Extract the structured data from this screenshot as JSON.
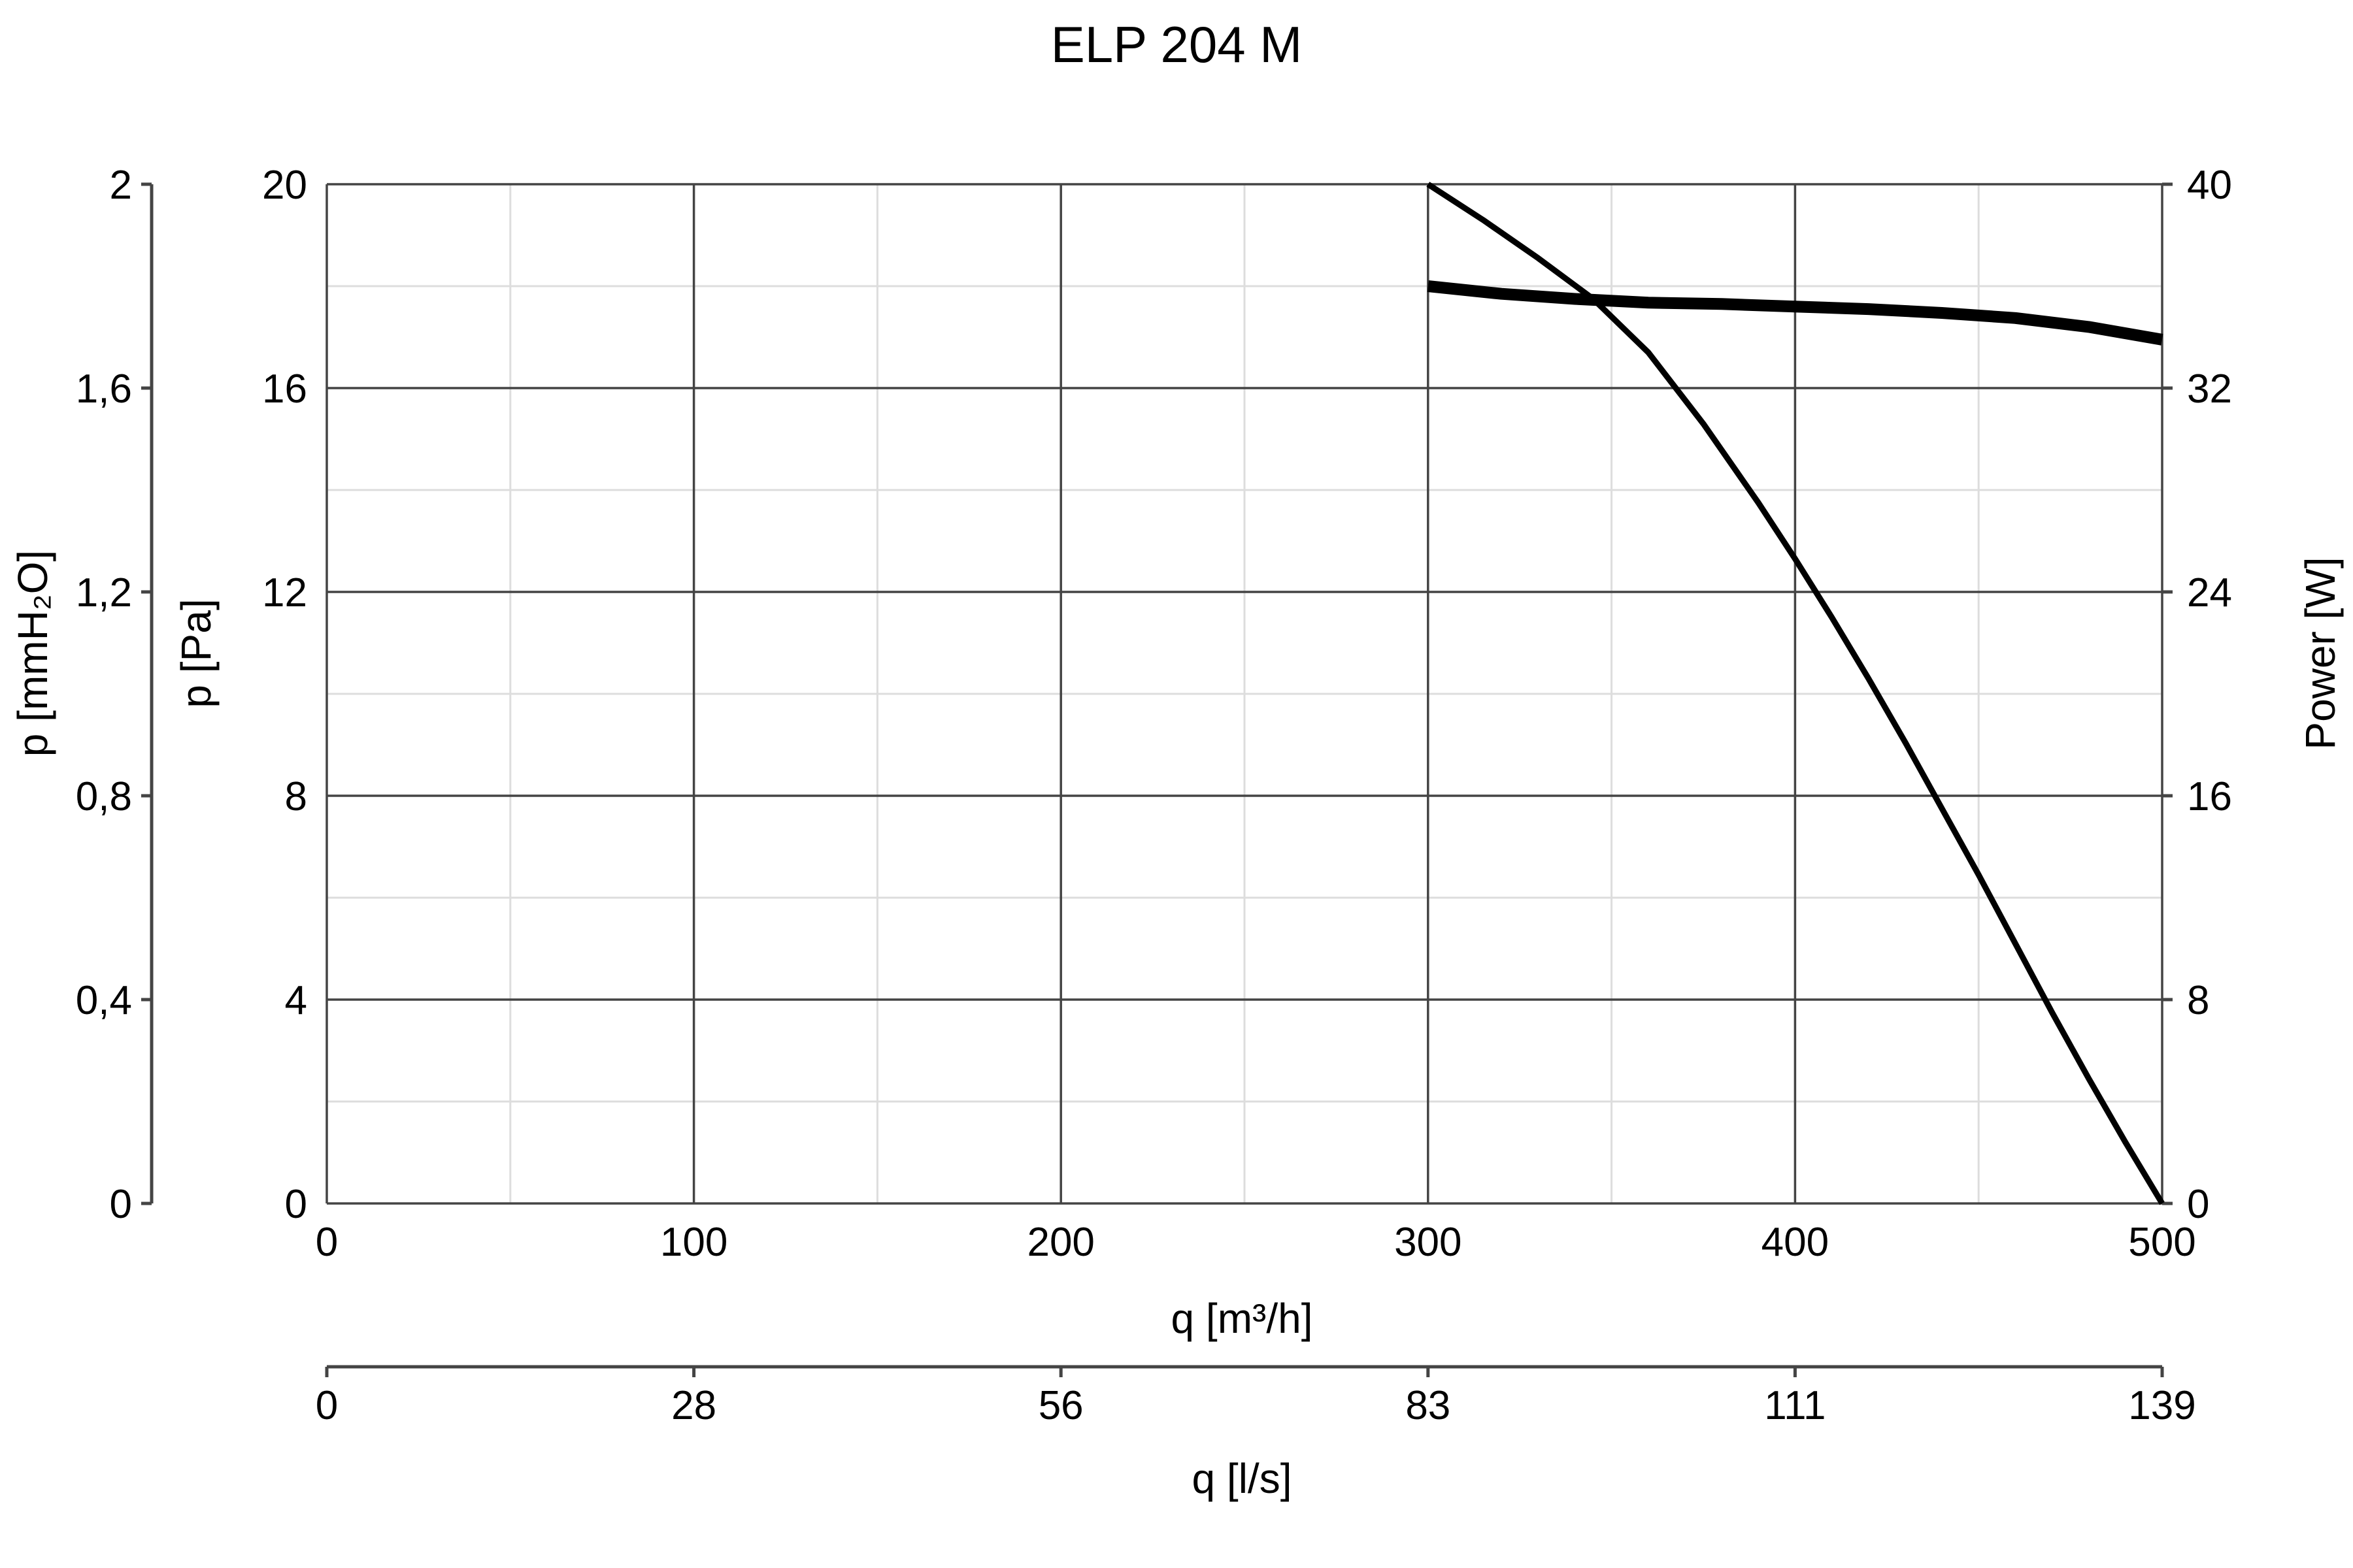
{
  "chart_data": {
    "type": "line",
    "title": "ELP 204 M",
    "x_axis": {
      "label": "q [m³/h]",
      "range": [
        0,
        500
      ],
      "ticks": [
        0,
        100,
        200,
        300,
        400,
        500
      ],
      "minor_grid_step": 50
    },
    "x2_axis": {
      "label": "q [l/s]",
      "tick_labels": [
        "0",
        "28",
        "56",
        "83",
        "111",
        "139"
      ]
    },
    "y_axis": {
      "label": "p [Pa]",
      "range": [
        0,
        20
      ],
      "ticks": [
        0,
        4,
        8,
        12,
        16,
        20
      ],
      "minor_grid_step": 2
    },
    "y_axis_mmh2o": {
      "label": "p [mmH₂O]",
      "tick_labels": [
        "0",
        "0,4",
        "0,8",
        "1,2",
        "1,6",
        "2"
      ]
    },
    "y2_axis": {
      "label": "Power [W]",
      "range": [
        0,
        40
      ],
      "ticks": [
        0,
        8,
        16,
        24,
        32,
        40
      ]
    },
    "grid": true,
    "legend": "none",
    "series": [
      {
        "axis": "pressure",
        "stroke": "#000000",
        "points": [
          [
            300,
            20.0
          ],
          [
            315,
            19.3
          ],
          [
            330,
            18.55
          ],
          [
            345,
            17.75
          ],
          [
            360,
            16.7
          ],
          [
            375,
            15.3
          ],
          [
            390,
            13.75
          ],
          [
            400,
            12.65
          ],
          [
            410,
            11.5
          ],
          [
            420,
            10.3
          ],
          [
            430,
            9.05
          ],
          [
            440,
            7.75
          ],
          [
            450,
            6.45
          ],
          [
            460,
            5.1
          ],
          [
            470,
            3.75
          ],
          [
            480,
            2.45
          ],
          [
            490,
            1.2
          ],
          [
            500,
            0.0
          ]
        ]
      },
      {
        "axis": "power",
        "stroke": "#000000",
        "points": [
          [
            300,
            36.0
          ],
          [
            320,
            35.7
          ],
          [
            340,
            35.5
          ],
          [
            360,
            35.35
          ],
          [
            380,
            35.3
          ],
          [
            400,
            35.2
          ],
          [
            420,
            35.1
          ],
          [
            440,
            34.95
          ],
          [
            460,
            34.75
          ],
          [
            480,
            34.4
          ],
          [
            500,
            33.9
          ]
        ]
      }
    ]
  }
}
